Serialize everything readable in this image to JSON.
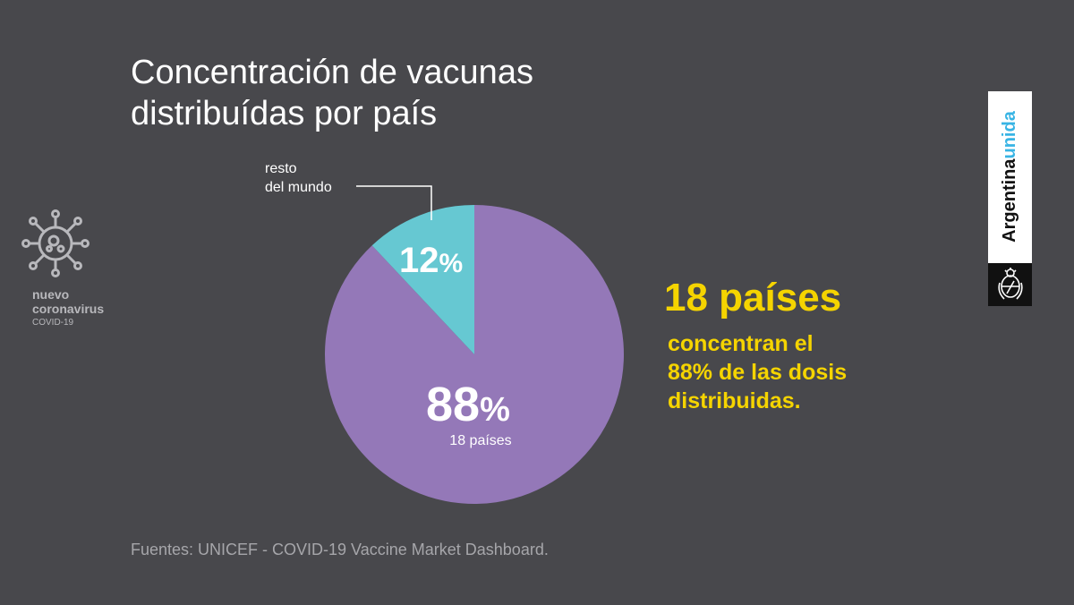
{
  "title_lines": [
    "Concentración de vacunas",
    "distribuídas por país"
  ],
  "chart_data": {
    "type": "pie",
    "title": "Concentración de vacunas distribuídas por país",
    "slices": [
      {
        "label": "18 países",
        "value": 88,
        "value_text": "88",
        "unit": "%",
        "sublabel": "18 países",
        "color": "#9478b8"
      },
      {
        "label": "resto del mundo",
        "value": 12,
        "value_text": "12",
        "unit": "%",
        "callout_lines": [
          "resto",
          "del mundo"
        ],
        "color": "#66c8d2"
      }
    ]
  },
  "highlight": {
    "headline": "18 países",
    "body_lines": [
      "concentran el",
      "88% de las dosis",
      "distribuidas."
    ]
  },
  "source": "Fuentes: UNICEF - COVID-19 Vaccine Market Dashboard.",
  "virus_logo": {
    "line1": "nuevo",
    "line2": "coronavirus",
    "line3": "COVID-19",
    "icon": "virus-icon"
  },
  "brand": {
    "word1": "Argentina",
    "word2": "unida",
    "seal_icon": "national-seal-icon"
  },
  "colors": {
    "background": "#48484c",
    "accent_yellow": "#f5d400",
    "purple": "#9478b8",
    "teal": "#66c8d2",
    "brand_blue": "#38b4e4"
  }
}
